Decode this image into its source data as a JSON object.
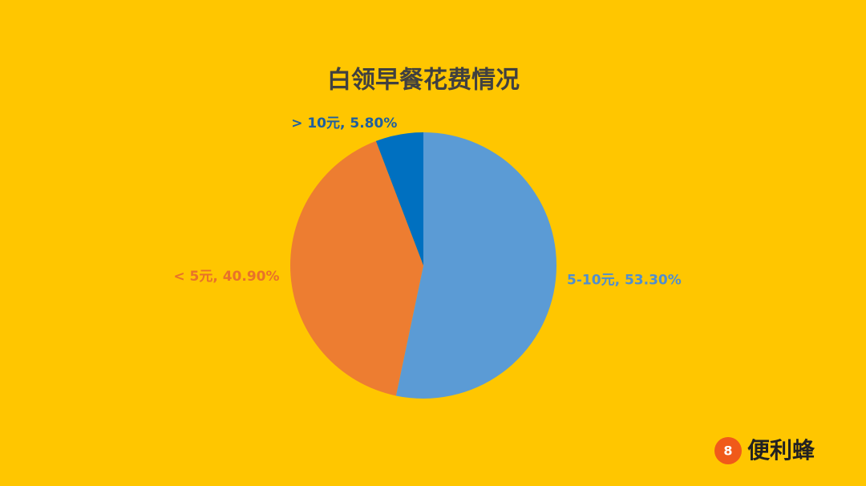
{
  "chart_data": {
    "type": "pie",
    "title": "白领早餐花费情况",
    "values": [
      53.3,
      40.9,
      5.8
    ],
    "value_labels": [
      "5-10元, 53.30%",
      "< 5元, 40.90%",
      "> 10元, 5.80%"
    ],
    "colors": [
      "#5B9BD5",
      "#ED7D31",
      "#0070C0"
    ],
    "label_colors": [
      "#4F8ED0",
      "#E8722A",
      "#1F5F9F"
    ]
  },
  "watermark": "便利蜂"
}
